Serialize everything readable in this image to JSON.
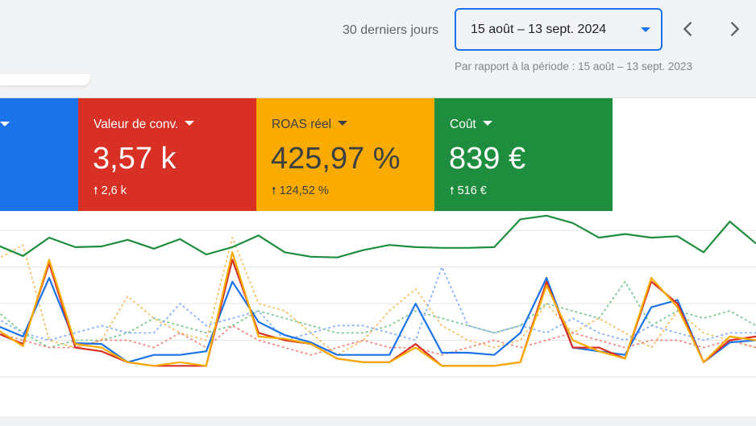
{
  "header": {
    "range_label": "30 derniers jours",
    "date_value": "15 août – 13 sept. 2024",
    "comparison": "Par rapport à la période : 15 août – 13 sept. 2023",
    "prev_icon": "chevron-left-icon",
    "next_icon": "chevron-right-icon"
  },
  "metrics": [
    {
      "title": "",
      "value": "",
      "delta": "",
      "color": "#1a73e8"
    },
    {
      "title": "Valeur de conv.",
      "value": "3,57 k",
      "delta": "2,6 k",
      "color": "#d93025"
    },
    {
      "title": "ROAS réel",
      "value": "425,97 %",
      "delta": "124,52 %",
      "color": "#f9ab00"
    },
    {
      "title": "Coût",
      "value": "839 €",
      "delta": "516 €",
      "color": "#1e8e3e"
    }
  ],
  "chart_data": {
    "type": "line",
    "grid": true,
    "x": [
      1,
      2,
      3,
      4,
      5,
      6,
      7,
      8,
      9,
      10,
      11,
      12,
      13,
      14,
      15,
      16,
      17,
      18,
      19,
      20,
      21,
      22,
      23,
      24,
      25,
      26,
      27,
      28,
      29,
      30
    ],
    "series": [
      {
        "color": "#1e8e3e",
        "style": "solid",
        "values": [
          1.8,
          1.65,
          1.9,
          1.77,
          1.78,
          1.87,
          1.75,
          1.88,
          1.67,
          1.77,
          1.93,
          1.7,
          1.64,
          1.63,
          1.73,
          1.8,
          1.77,
          1.76,
          1.76,
          1.77,
          2.15,
          2.2,
          2.1,
          1.9,
          1.95,
          1.9,
          1.92,
          1.7,
          2.12,
          1.82
        ]
      },
      {
        "color": "#1a73e8",
        "style": "solid",
        "values": [
          0.7,
          0.55,
          1.35,
          0.46,
          0.45,
          0.2,
          0.3,
          0.3,
          0.35,
          1.3,
          0.75,
          0.57,
          0.47,
          0.3,
          0.3,
          0.3,
          1.0,
          0.33,
          0.33,
          0.3,
          0.6,
          1.35,
          0.4,
          0.35,
          0.3,
          0.95,
          1.05,
          0.2,
          0.47,
          0.5
        ]
      },
      {
        "color": "#d93025",
        "style": "solid",
        "values": [
          0.6,
          0.45,
          1.55,
          0.4,
          0.35,
          0.2,
          0.15,
          0.15,
          0.15,
          1.6,
          0.6,
          0.5,
          0.45,
          0.25,
          0.2,
          0.2,
          0.45,
          0.15,
          0.15,
          0.15,
          0.2,
          1.3,
          0.4,
          0.4,
          0.25,
          1.3,
          1.0,
          0.2,
          0.5,
          0.55
        ]
      },
      {
        "color": "#f9ab00",
        "style": "solid",
        "values": [
          0.65,
          0.42,
          1.6,
          0.45,
          0.4,
          0.2,
          0.15,
          0.2,
          0.15,
          1.7,
          0.55,
          0.52,
          0.45,
          0.25,
          0.2,
          0.2,
          0.4,
          0.15,
          0.15,
          0.15,
          0.2,
          1.25,
          0.5,
          0.35,
          0.25,
          1.35,
          0.95,
          0.2,
          0.55,
          0.5
        ]
      },
      {
        "color": "#f6c26b",
        "style": "dotted",
        "values": [
          1.6,
          1.8,
          0.5,
          0.4,
          0.5,
          1.1,
          0.8,
          0.6,
          0.5,
          1.9,
          1.0,
          0.9,
          0.6,
          0.3,
          0.5,
          0.9,
          1.2,
          0.7,
          0.5,
          0.4,
          0.5,
          1.0,
          0.6,
          0.8,
          0.6,
          0.4,
          0.9,
          0.6,
          0.5,
          0.4
        ]
      },
      {
        "color": "#81c995",
        "style": "dotted",
        "values": [
          0.9,
          0.6,
          0.4,
          0.5,
          0.5,
          0.6,
          0.8,
          0.7,
          0.6,
          0.7,
          0.9,
          0.8,
          0.7,
          0.6,
          0.6,
          0.7,
          0.9,
          0.8,
          0.7,
          0.6,
          0.7,
          1.0,
          0.9,
          0.8,
          1.3,
          0.7,
          0.9,
          0.8,
          0.9,
          0.7
        ]
      },
      {
        "color": "#8ab4f8",
        "style": "dotted",
        "values": [
          0.8,
          0.6,
          0.5,
          0.6,
          0.7,
          0.6,
          0.6,
          1.0,
          0.7,
          0.8,
          0.9,
          0.5,
          0.6,
          0.7,
          0.7,
          0.6,
          0.5,
          1.5,
          0.7,
          0.6,
          0.7,
          0.6,
          0.8,
          0.6,
          0.5,
          0.7,
          0.6,
          0.5,
          0.6,
          0.6
        ]
      },
      {
        "color": "#f28b82",
        "style": "dotted",
        "values": [
          0.6,
          0.5,
          0.4,
          0.4,
          0.5,
          0.5,
          0.4,
          0.6,
          0.4,
          0.7,
          0.5,
          0.4,
          0.3,
          0.4,
          0.5,
          0.4,
          0.4,
          0.3,
          0.4,
          0.5,
          0.4,
          0.5,
          0.6,
          0.5,
          0.4,
          0.5,
          0.5,
          0.4,
          0.5,
          0.4
        ]
      }
    ]
  }
}
